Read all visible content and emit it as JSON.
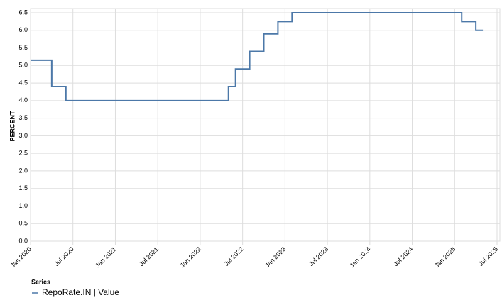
{
  "chart_data": {
    "type": "step-line",
    "y_label": "PERCENT",
    "legend_title": "Series",
    "x": [
      "2020-01",
      "2020-02",
      "2020-03",
      "2020-04",
      "2020-05",
      "2020-06",
      "2020-07",
      "2020-08",
      "2020-09",
      "2020-10",
      "2020-11",
      "2020-12",
      "2021-01",
      "2021-02",
      "2021-03",
      "2021-04",
      "2021-05",
      "2021-06",
      "2021-07",
      "2021-08",
      "2021-09",
      "2021-10",
      "2021-11",
      "2021-12",
      "2022-01",
      "2022-02",
      "2022-03",
      "2022-04",
      "2022-05",
      "2022-06",
      "2022-07",
      "2022-08",
      "2022-09",
      "2022-10",
      "2022-11",
      "2022-12",
      "2023-01",
      "2023-02",
      "2023-03",
      "2023-04",
      "2023-05",
      "2023-06",
      "2023-07",
      "2023-08",
      "2023-09",
      "2023-10",
      "2023-11",
      "2023-12",
      "2024-01",
      "2024-02",
      "2024-03",
      "2024-04",
      "2024-05",
      "2024-06",
      "2024-07",
      "2024-08",
      "2024-09",
      "2024-10",
      "2024-11",
      "2024-12",
      "2025-01",
      "2025-02",
      "2025-03",
      "2025-04",
      "2025-05"
    ],
    "series": [
      {
        "name": "RepoRate.IN | Value",
        "color": "#4c78a8",
        "values": [
          5.15,
          5.15,
          5.15,
          4.4,
          4.4,
          4.0,
          4.0,
          4.0,
          4.0,
          4.0,
          4.0,
          4.0,
          4.0,
          4.0,
          4.0,
          4.0,
          4.0,
          4.0,
          4.0,
          4.0,
          4.0,
          4.0,
          4.0,
          4.0,
          4.0,
          4.0,
          4.0,
          4.0,
          4.4,
          4.9,
          4.9,
          5.4,
          5.4,
          5.9,
          5.9,
          6.25,
          6.25,
          6.5,
          6.5,
          6.5,
          6.5,
          6.5,
          6.5,
          6.5,
          6.5,
          6.5,
          6.5,
          6.5,
          6.5,
          6.5,
          6.5,
          6.5,
          6.5,
          6.5,
          6.5,
          6.5,
          6.5,
          6.5,
          6.5,
          6.5,
          6.5,
          6.25,
          6.25,
          6.0,
          6.0
        ]
      }
    ],
    "xlim": [
      "2020-01",
      "2025-07"
    ],
    "xticks": [
      {
        "value": "2020-01",
        "label": "Jan 2020"
      },
      {
        "value": "2020-07",
        "label": "Jul 2020"
      },
      {
        "value": "2021-01",
        "label": "Jan 2021"
      },
      {
        "value": "2021-07",
        "label": "Jul 2021"
      },
      {
        "value": "2022-01",
        "label": "Jan 2022"
      },
      {
        "value": "2022-07",
        "label": "Jul 2022"
      },
      {
        "value": "2023-01",
        "label": "Jan 2023"
      },
      {
        "value": "2023-07",
        "label": "Jul 2023"
      },
      {
        "value": "2024-01",
        "label": "Jan 2024"
      },
      {
        "value": "2024-07",
        "label": "Jul 2024"
      },
      {
        "value": "2025-01",
        "label": "Jan 2025"
      },
      {
        "value": "2025-07",
        "label": "Jul 2025"
      }
    ],
    "ylim": [
      0,
      6.5
    ],
    "yticks": [
      {
        "value": 0,
        "label": "0.0"
      },
      0.5,
      {
        "value": 1,
        "label": "1.0"
      },
      1.5,
      {
        "value": 2,
        "label": "2.0"
      },
      2.5,
      {
        "value": 3,
        "label": "3.0"
      },
      3.5,
      {
        "value": 4,
        "label": "4.0"
      },
      4.5,
      {
        "value": 5,
        "label": "5.0"
      },
      5.5,
      {
        "value": 6,
        "label": "6.0"
      },
      6.5
    ],
    "grid": true
  }
}
